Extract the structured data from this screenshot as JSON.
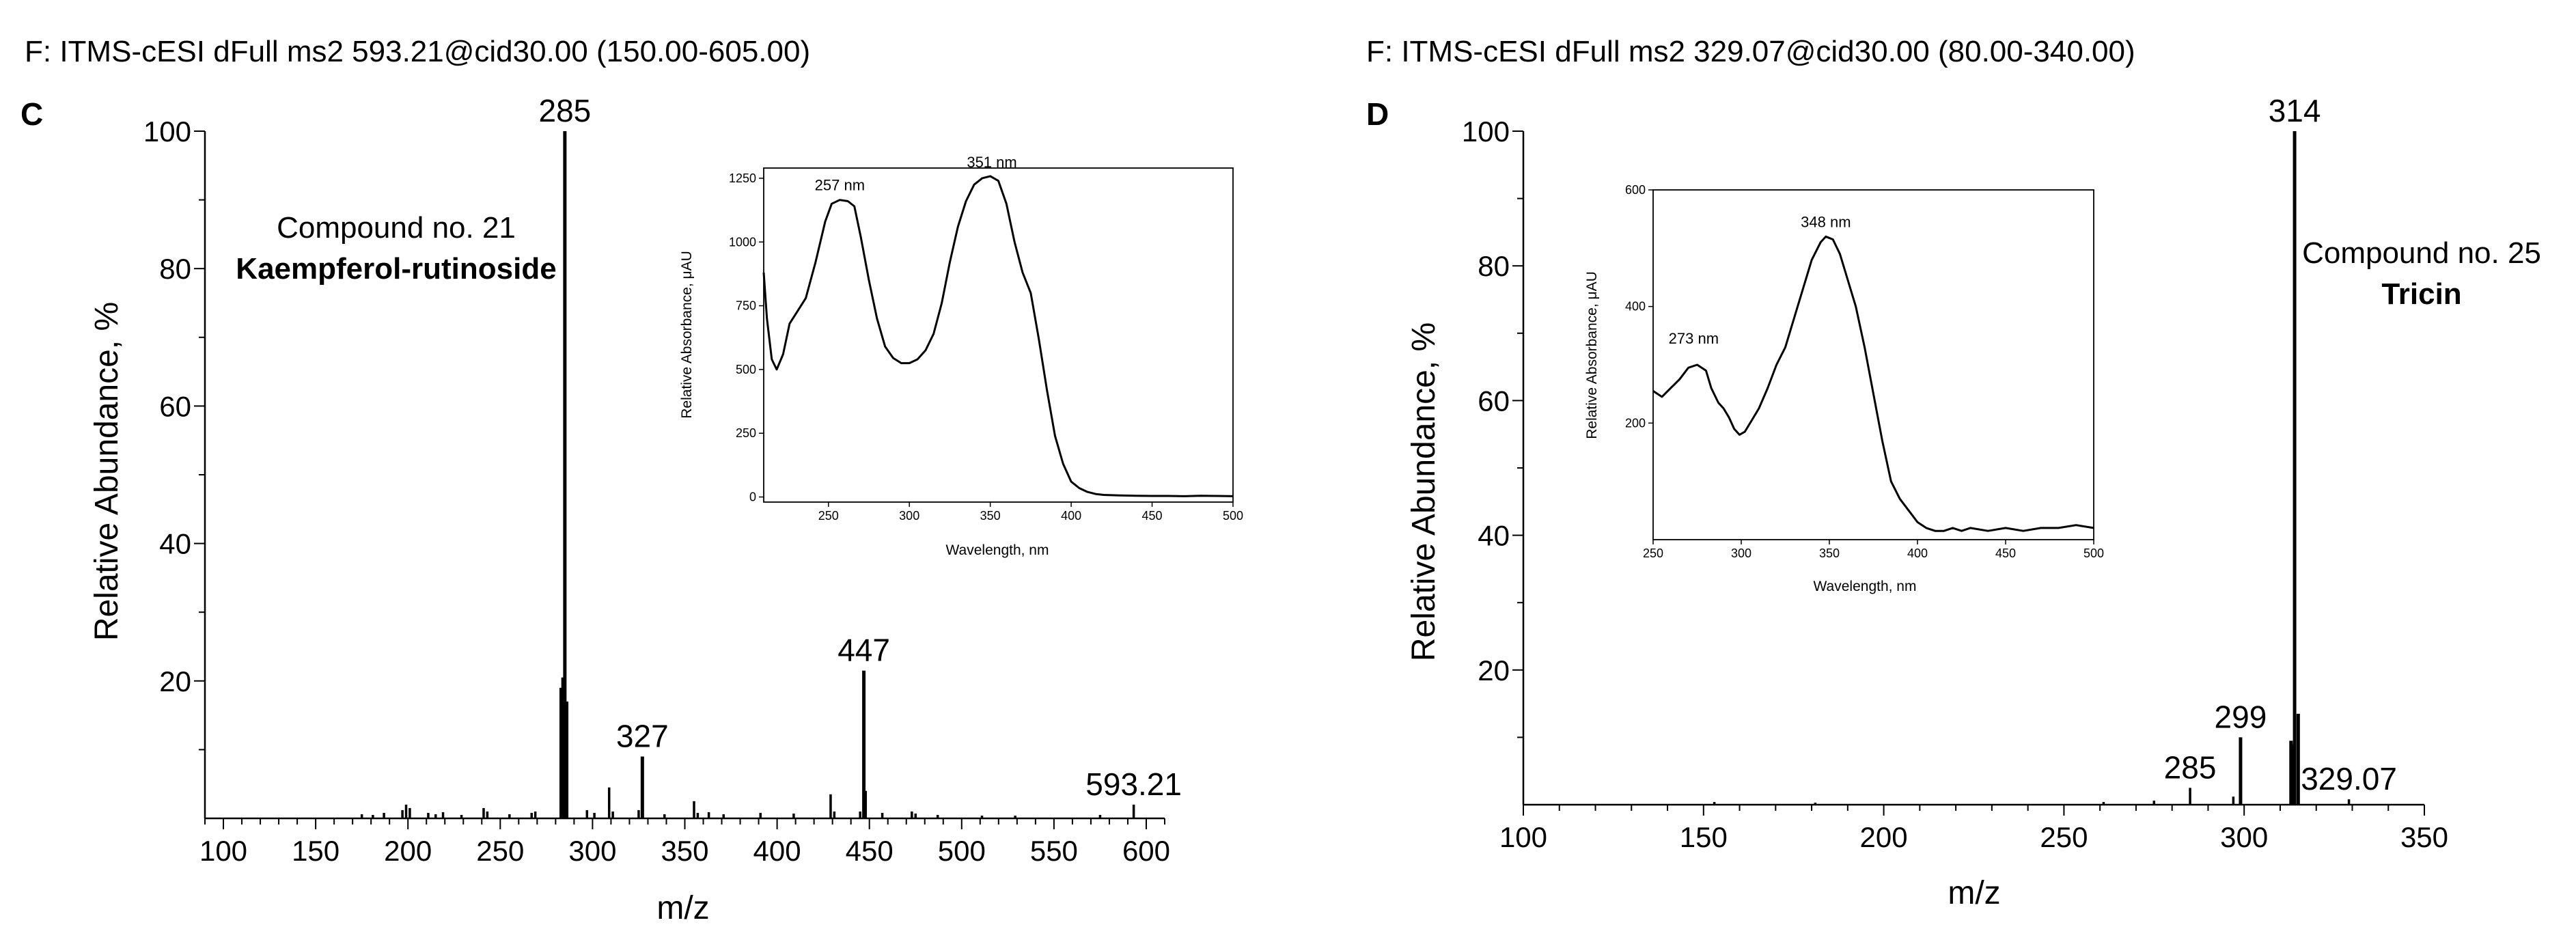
{
  "panels": [
    {
      "id": "C",
      "scan_header": "F: ITMS-cESI dFull ms2 593.21@cid30.00 (150.00-605.00)",
      "panel_label": "C",
      "compound_number": "Compound no. 21",
      "compound_name": "Kaempferol-rutinoside",
      "chart_data": {
        "type": "bar",
        "title": "F: ITMS-cESI dFull ms2 593.21@cid30.00 (150.00-605.00)",
        "xlabel": "m/z",
        "ylabel": "Relative Abundance, %",
        "xlim": [
          90,
          610
        ],
        "ylim": [
          0,
          100
        ],
        "xticks": [
          100,
          150,
          200,
          250,
          300,
          350,
          400,
          450,
          500,
          550,
          600
        ],
        "xticklabels": [
          "100",
          "150",
          "200",
          "250",
          "300",
          "350",
          "400",
          "450",
          "500",
          "550",
          "600"
        ],
        "yticks": [
          20,
          40,
          60,
          80,
          100
        ],
        "yticklabels": [
          "20",
          "40",
          "60",
          "80",
          "100"
        ],
        "peaks": [
          {
            "mz": 175,
            "intensity": 0.6
          },
          {
            "mz": 181,
            "intensity": 0.5
          },
          {
            "mz": 187,
            "intensity": 0.8
          },
          {
            "mz": 197,
            "intensity": 1.2
          },
          {
            "mz": 199,
            "intensity": 2.0
          },
          {
            "mz": 201,
            "intensity": 1.5
          },
          {
            "mz": 211,
            "intensity": 0.8
          },
          {
            "mz": 215,
            "intensity": 0.6
          },
          {
            "mz": 219,
            "intensity": 0.9
          },
          {
            "mz": 229,
            "intensity": 0.5
          },
          {
            "mz": 241,
            "intensity": 1.5
          },
          {
            "mz": 243,
            "intensity": 1.0
          },
          {
            "mz": 255,
            "intensity": 0.6
          },
          {
            "mz": 267,
            "intensity": 0.8
          },
          {
            "mz": 269,
            "intensity": 1.0
          },
          {
            "mz": 283,
            "intensity": 19.0
          },
          {
            "mz": 284,
            "intensity": 20.5
          },
          {
            "mz": 285,
            "intensity": 100,
            "label": "285"
          },
          {
            "mz": 286,
            "intensity": 17.0
          },
          {
            "mz": 297,
            "intensity": 1.2
          },
          {
            "mz": 301,
            "intensity": 0.8
          },
          {
            "mz": 309,
            "intensity": 4.5
          },
          {
            "mz": 311,
            "intensity": 1.0
          },
          {
            "mz": 325,
            "intensity": 1.2
          },
          {
            "mz": 327,
            "intensity": 9.0,
            "label": "327"
          },
          {
            "mz": 339,
            "intensity": 0.6
          },
          {
            "mz": 355,
            "intensity": 2.5
          },
          {
            "mz": 357,
            "intensity": 0.8
          },
          {
            "mz": 363,
            "intensity": 0.9
          },
          {
            "mz": 371,
            "intensity": 0.6
          },
          {
            "mz": 391,
            "intensity": 0.8
          },
          {
            "mz": 409,
            "intensity": 0.7
          },
          {
            "mz": 429,
            "intensity": 3.5
          },
          {
            "mz": 431,
            "intensity": 1.0
          },
          {
            "mz": 445,
            "intensity": 1.0
          },
          {
            "mz": 447,
            "intensity": 21.5,
            "label": "447"
          },
          {
            "mz": 448,
            "intensity": 4.0
          },
          {
            "mz": 457,
            "intensity": 0.8
          },
          {
            "mz": 473,
            "intensity": 1.0
          },
          {
            "mz": 475,
            "intensity": 0.7
          },
          {
            "mz": 487,
            "intensity": 0.5
          },
          {
            "mz": 511,
            "intensity": 0.4
          },
          {
            "mz": 529,
            "intensity": 0.4
          },
          {
            "mz": 575,
            "intensity": 0.5
          },
          {
            "mz": 593.21,
            "intensity": 2.0,
            "label": "593.21"
          }
        ]
      },
      "inset": {
        "chart_data": {
          "type": "line",
          "xlabel": "Wavelength, nm",
          "ylabel": "Relative Absorbance, μAU",
          "xlim": [
            210,
            500
          ],
          "ylim": [
            -20,
            1290
          ],
          "xticks": [
            250,
            300,
            350,
            400,
            450,
            500
          ],
          "xticklabels": [
            "250",
            "300",
            "350",
            "400",
            "450",
            "500"
          ],
          "yticks": [
            0,
            250,
            500,
            750,
            1000,
            1250
          ],
          "yticklabels": [
            "0",
            "250",
            "500",
            "750",
            "1000",
            "1250"
          ],
          "annotations": [
            {
              "x": 257,
              "y": 1165,
              "text": "257 nm"
            },
            {
              "x": 351,
              "y": 1255,
              "text": "351 nm"
            }
          ],
          "x": [
            210,
            212,
            215,
            218,
            222,
            226,
            230,
            236,
            242,
            248,
            252,
            257,
            262,
            266,
            270,
            275,
            280,
            285,
            290,
            295,
            300,
            305,
            310,
            315,
            320,
            325,
            330,
            335,
            340,
            345,
            350,
            355,
            360,
            365,
            370,
            375,
            380,
            385,
            390,
            395,
            400,
            405,
            410,
            415,
            420,
            430,
            440,
            450,
            460,
            470,
            480,
            490,
            500
          ],
          "y": [
            880,
            700,
            540,
            500,
            560,
            680,
            720,
            780,
            920,
            1080,
            1150,
            1165,
            1160,
            1140,
            1020,
            850,
            700,
            590,
            545,
            525,
            525,
            540,
            575,
            640,
            760,
            920,
            1060,
            1160,
            1225,
            1250,
            1258,
            1240,
            1150,
            1000,
            880,
            800,
            620,
            420,
            240,
            130,
            60,
            35,
            20,
            12,
            8,
            6,
            5,
            4,
            4,
            3,
            5,
            4,
            3
          ]
        }
      }
    },
    {
      "id": "D",
      "scan_header": "F: ITMS-cESI dFull ms2 329.07@cid30.00 (80.00-340.00)",
      "panel_label": "D",
      "compound_number": "Compound no. 25",
      "compound_name": "Tricin",
      "chart_data": {
        "type": "bar",
        "title": "F: ITMS-cESI dFull ms2 329.07@cid30.00 (80.00-340.00)",
        "xlabel": "m/z",
        "ylabel": "Relative Abundance, %",
        "xlim": [
          100,
          350
        ],
        "ylim": [
          0,
          100
        ],
        "xticks": [
          100,
          150,
          200,
          250,
          300,
          350
        ],
        "xticklabels": [
          "100",
          "150",
          "200",
          "250",
          "300",
          "350"
        ],
        "yticks": [
          20,
          40,
          60,
          80,
          100
        ],
        "yticklabels": [
          "20",
          "40",
          "60",
          "80",
          "100"
        ],
        "peaks": [
          {
            "mz": 153,
            "intensity": 0.4
          },
          {
            "mz": 181,
            "intensity": 0.3
          },
          {
            "mz": 261,
            "intensity": 0.4
          },
          {
            "mz": 275,
            "intensity": 0.6
          },
          {
            "mz": 285,
            "intensity": 2.5,
            "label": "285"
          },
          {
            "mz": 297,
            "intensity": 1.2
          },
          {
            "mz": 299,
            "intensity": 10.0,
            "label": "299"
          },
          {
            "mz": 313,
            "intensity": 9.5
          },
          {
            "mz": 313.5,
            "intensity": 9.0
          },
          {
            "mz": 314,
            "intensity": 100,
            "label": "314"
          },
          {
            "mz": 315,
            "intensity": 13.5
          },
          {
            "mz": 329.07,
            "intensity": 0.8,
            "label": "329.07"
          }
        ]
      },
      "inset": {
        "chart_data": {
          "type": "line",
          "xlabel": "Wavelength, nm",
          "ylabel": "Relative Absorbance, μAU",
          "xlim": [
            250,
            500
          ],
          "ylim": [
            0,
            600
          ],
          "xticks": [
            250,
            300,
            350,
            400,
            450,
            500
          ],
          "xticklabels": [
            "250",
            "300",
            "350",
            "400",
            "450",
            "500"
          ],
          "yticks": [
            200,
            400,
            600
          ],
          "yticklabels": [
            "200",
            "400",
            "600"
          ],
          "annotations": [
            {
              "x": 273,
              "y": 320,
              "text": "273 nm"
            },
            {
              "x": 348,
              "y": 520,
              "text": "348 nm"
            }
          ],
          "x": [
            250,
            255,
            260,
            265,
            270,
            275,
            280,
            283,
            287,
            290,
            293,
            296,
            299,
            302,
            306,
            310,
            315,
            320,
            325,
            330,
            335,
            340,
            345,
            348,
            352,
            356,
            360,
            365,
            370,
            375,
            380,
            385,
            390,
            395,
            400,
            405,
            410,
            415,
            420,
            425,
            430,
            440,
            450,
            460,
            470,
            480,
            490,
            500
          ],
          "y": [
            255,
            245,
            260,
            275,
            295,
            300,
            290,
            260,
            235,
            225,
            210,
            190,
            180,
            185,
            205,
            225,
            260,
            300,
            330,
            380,
            430,
            480,
            510,
            520,
            515,
            490,
            450,
            400,
            330,
            250,
            170,
            100,
            70,
            50,
            30,
            20,
            15,
            15,
            20,
            15,
            20,
            15,
            20,
            15,
            20,
            20,
            25,
            20
          ]
        }
      }
    }
  ]
}
